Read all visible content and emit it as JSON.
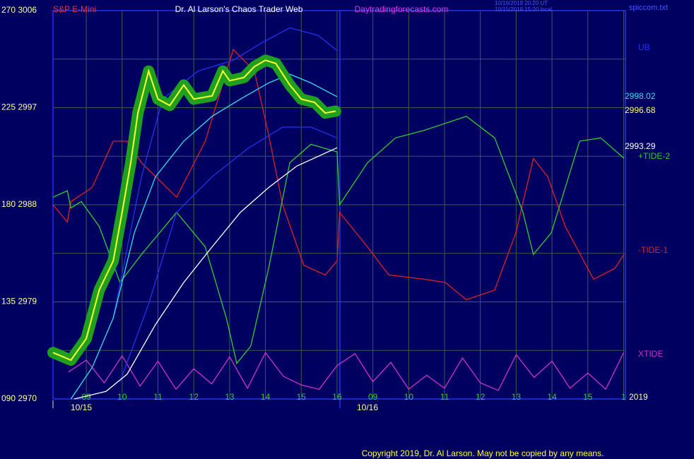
{
  "chart_data": {
    "type": "line",
    "symbol": "S&P E-Mini",
    "title": "Dr. Al Larson's Chaos Trader Web",
    "website": "Daytradingforecasts.com",
    "timestamps": [
      "10/16/2019 20:20 UT",
      "10/15/2019 15:20 local"
    ],
    "file": "spiccom.txt",
    "year": "2019",
    "copyright": "Copyright 2019, Dr. Al Larson. May not be copied by any means.",
    "dates": [
      "10/15",
      "10/16"
    ],
    "xlim": [
      0.07,
      16.05
    ],
    "ylim": [
      2970,
      3006
    ],
    "grid": true,
    "xticks": [
      {
        "value": 1,
        "label": "09"
      },
      {
        "value": 2,
        "label": "10"
      },
      {
        "value": 3,
        "label": "11"
      },
      {
        "value": 4,
        "label": "12"
      },
      {
        "value": 5,
        "label": "13"
      },
      {
        "value": 6,
        "label": "14"
      },
      {
        "value": 7,
        "label": "15"
      },
      {
        "value": 8,
        "label": "16"
      },
      {
        "value": 9,
        "label": "09"
      },
      {
        "value": 10,
        "label": "10"
      },
      {
        "value": 11,
        "label": "11"
      },
      {
        "value": 12,
        "label": "12"
      },
      {
        "value": 13,
        "label": "13"
      },
      {
        "value": 14,
        "label": "14"
      },
      {
        "value": 15,
        "label": "15"
      },
      {
        "value": 16,
        "label": "1"
      }
    ],
    "yticks": [
      {
        "value": 3006,
        "label": "270 3006"
      },
      {
        "value": 2997,
        "label": "225 2997"
      },
      {
        "value": 2988,
        "label": "180 2988"
      },
      {
        "value": 2979,
        "label": "135 2979"
      },
      {
        "value": 2970,
        "label": "090 2970"
      }
    ],
    "series": [
      {
        "name": "XTIDE",
        "color": "#cc33cc",
        "x": [
          0.5,
          1,
          1.5,
          2,
          2.5,
          3,
          3.5,
          4,
          4.5,
          5,
          5.5,
          6,
          6.5,
          7,
          7.5,
          8,
          8.5,
          9,
          9.5,
          10,
          10.5,
          11,
          11.5,
          12,
          12.5,
          13,
          13.5,
          14,
          14.5,
          15,
          15.5,
          16
        ],
        "values": [
          2972.5,
          2973.6,
          2971.5,
          2974.0,
          2971.2,
          2973.5,
          2970.9,
          2972.8,
          2971.4,
          2973.9,
          2971.0,
          2974.3,
          2972.1,
          2971.3,
          2970.9,
          2973.1,
          2974.2,
          2971.6,
          2973.4,
          2970.9,
          2972.2,
          2971.0,
          2973.8,
          2971.5,
          2970.8,
          2974.1,
          2972.0,
          2973.5,
          2971.0,
          2972.4,
          2970.9,
          2974.3
        ]
      },
      {
        "name": "-TIDE-1",
        "color": "#dd2222",
        "x": [
          0.07,
          0.47,
          0.57,
          1.16,
          1.75,
          2.14,
          2.54,
          3.52,
          4.32,
          5.1,
          5.69,
          6.09,
          6.48,
          7.07,
          7.67,
          8,
          8.07,
          8.85,
          9.44,
          10.43,
          11.02,
          11.61,
          12.4,
          12.99,
          13.48,
          13.88,
          14.37,
          15.16,
          15.75,
          16.01
        ],
        "values": [
          2988,
          2986.4,
          2988.3,
          2989.6,
          2993.9,
          2993.9,
          2991.9,
          2988.7,
          2993.9,
          3002.4,
          3000.4,
          2994.5,
          2988,
          2982.4,
          2981.5,
          2982.8,
          2987.3,
          2984.1,
          2981.5,
          2981.1,
          2980.8,
          2979.2,
          2980.1,
          2985.4,
          2992.3,
          2990.6,
          2986,
          2981.1,
          2982.1,
          2983.4
        ]
      },
      {
        "name": "+TIDE-2",
        "color": "#33cc33",
        "x": [
          0.07,
          0.47,
          0.57,
          0.86,
          1.36,
          1.94,
          2.54,
          3.52,
          4.32,
          4.91,
          5.2,
          5.59,
          6.09,
          6.68,
          7.27,
          8,
          8.07,
          8.85,
          9.63,
          10.43,
          11.61,
          12.4,
          13.19,
          13.48,
          13.98,
          14.77,
          15.36,
          16.01
        ],
        "values": [
          2988.7,
          2989.3,
          2987.7,
          2988.3,
          2986,
          2980.8,
          2983.4,
          2987.3,
          2984.1,
          2977.5,
          2973.3,
          2974.9,
          2982.1,
          2991.9,
          2993.6,
          2992.9,
          2988,
          2991.9,
          2994.2,
          2994.9,
          2996.2,
          2994.2,
          2987.3,
          2983.4,
          2985.4,
          2993.9,
          2994.2,
          2992.3
        ]
      },
      {
        "name": "UB",
        "color": "#2233ee",
        "x": [
          1.75,
          2.54,
          3.13,
          4.12,
          5.1,
          5.89,
          6.68,
          7.47,
          8
        ],
        "values": [
          2977.5,
          2990.6,
          2997.8,
          3000.4,
          3001.4,
          3003.0,
          3004.4,
          3003.7,
          3002.3
        ]
      },
      {
        "color": "#2233ee",
        "x": [
          1.94,
          2.74,
          3.52,
          4.51,
          5.5,
          6.48,
          7.27,
          8
        ],
        "values": [
          2971.6,
          2978.8,
          2987.3,
          2990.6,
          2993.2,
          2995.2,
          2995.2,
          2994.2
        ]
      },
      {
        "color": "#ffffff",
        "label": "2993.29",
        "x": [
          0.66,
          1.55,
          2.14,
          2.93,
          3.72,
          4.51,
          5.3,
          6.09,
          6.88,
          8
        ],
        "values": [
          2970,
          2970.7,
          2972.3,
          2976.9,
          2980.8,
          2984.1,
          2987.3,
          2989.6,
          2991.6,
          2993.29
        ]
      },
      {
        "color": "#33ddee",
        "label": "2998.02",
        "x": [
          0.57,
          1.16,
          1.75,
          2.34,
          2.93,
          3.72,
          4.51,
          5.3,
          6.09,
          6.68,
          7.27,
          8
        ],
        "values": [
          2970,
          2972.9,
          2977.5,
          2985.4,
          2990.6,
          2993.9,
          2996.2,
          2997.8,
          2999.3,
          3000.1,
          2999.3,
          2998.02
        ]
      },
      {
        "color": "#ffff33",
        "outline": "#1fa01f",
        "label": "2996.68",
        "x": [
          0.07,
          0.57,
          1,
          1.36,
          1.75,
          2,
          2.24,
          2.44,
          2.74,
          3,
          3.33,
          3.72,
          4,
          4.51,
          4.81,
          5,
          5.4,
          5.69,
          6,
          6.29,
          6.68,
          7,
          7.37,
          7.67,
          7.96
        ],
        "values": [
          2974.3,
          2973.6,
          2975.6,
          2980.1,
          2982.8,
          2987.3,
          2991.9,
          2996.5,
          3000.4,
          2997.8,
          2997.2,
          2999.1,
          2997.8,
          2998.1,
          3000.4,
          2999.5,
          2999.8,
          3000.8,
          3001.4,
          3001.1,
          2999.1,
          2997.8,
          2997.5,
          2996.5,
          2996.68
        ]
      }
    ]
  }
}
